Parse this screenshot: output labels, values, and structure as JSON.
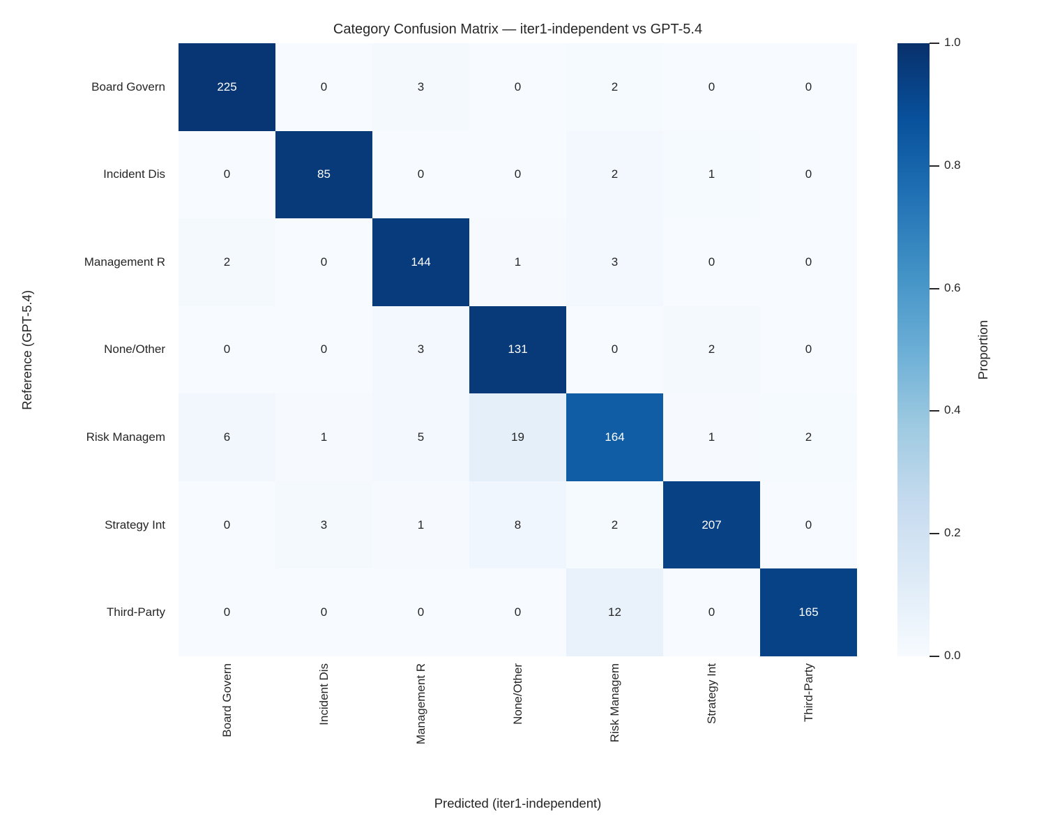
{
  "chart_data": {
    "type": "heatmap",
    "title": "Category Confusion Matrix — iter1-independent vs GPT-5.4",
    "xlabel": "Predicted (iter1-independent)",
    "ylabel": "Reference (GPT-5.4)",
    "x_categories": [
      "Board Govern",
      "Incident Dis",
      "Management R",
      "None/Other",
      "Risk Managem",
      "Strategy Int",
      "Third-Party"
    ],
    "y_categories": [
      "Board Govern",
      "Incident Dis",
      "Management R",
      "None/Other",
      "Risk Managem",
      "Strategy Int",
      "Third-Party"
    ],
    "matrix": [
      [
        225,
        0,
        3,
        0,
        2,
        0,
        0
      ],
      [
        0,
        85,
        0,
        0,
        2,
        1,
        0
      ],
      [
        2,
        0,
        144,
        1,
        3,
        0,
        0
      ],
      [
        0,
        0,
        3,
        131,
        0,
        2,
        0
      ],
      [
        6,
        1,
        5,
        19,
        164,
        1,
        2
      ],
      [
        0,
        3,
        1,
        8,
        2,
        207,
        0
      ],
      [
        0,
        0,
        0,
        0,
        12,
        0,
        165
      ]
    ],
    "normalization": "row-proportion",
    "grid": false,
    "colorbar": {
      "label": "Proportion",
      "tick_labels": [
        "1.0",
        "0.8",
        "0.6",
        "0.4",
        "0.2",
        "0.0"
      ],
      "tick_values": [
        1.0,
        0.8,
        0.6,
        0.4,
        0.2,
        0.0
      ],
      "min": 0.0,
      "max": 1.0,
      "position": "right"
    },
    "colormap": {
      "name": "Blues",
      "anchors": [
        "#f7fbff",
        "#deebf7",
        "#c6dbef",
        "#9ecae1",
        "#6baed6",
        "#4292c6",
        "#2171b5",
        "#08519c",
        "#08306b"
      ]
    },
    "colors": {
      "annotation_on_dark": "#ffffff",
      "annotation_on_light": "#262626",
      "text": "#262626",
      "background": "#ffffff"
    }
  }
}
